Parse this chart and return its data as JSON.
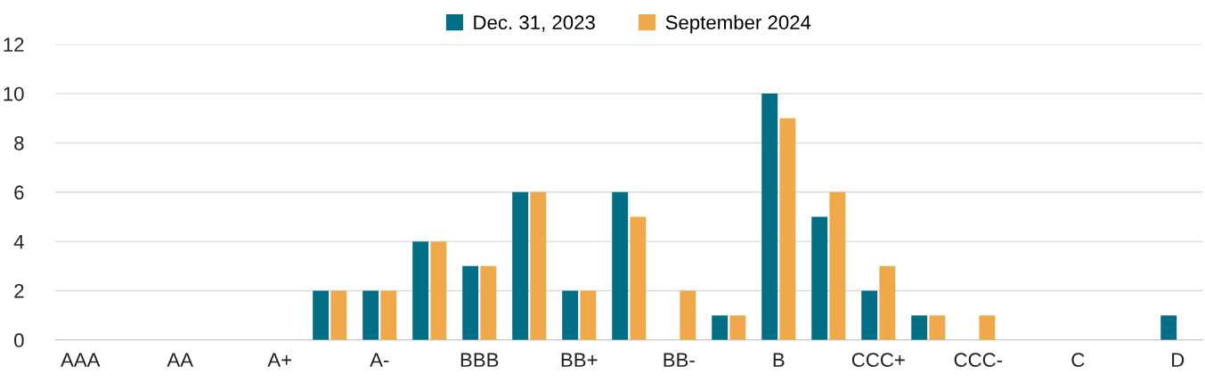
{
  "chart_data": {
    "type": "bar",
    "categories": [
      "AAA",
      null,
      "AA",
      null,
      "A+",
      null,
      "A-",
      null,
      "BBB",
      null,
      "BB+",
      null,
      "BB-",
      null,
      "B",
      null,
      "CCC+",
      null,
      "CCC-",
      null,
      "C",
      null,
      "D"
    ],
    "series": [
      {
        "name": "Dec. 31, 2023",
        "color": "#006f86",
        "values": [
          0,
          0,
          0,
          0,
          0,
          2,
          2,
          4,
          3,
          6,
          2,
          6,
          0,
          1,
          10,
          5,
          2,
          1,
          0,
          0,
          0,
          0,
          1
        ]
      },
      {
        "name": "September 2024",
        "color": "#f0a94a",
        "values": [
          0,
          0,
          0,
          0,
          0,
          2,
          2,
          4,
          3,
          6,
          2,
          5,
          2,
          1,
          9,
          6,
          3,
          1,
          1,
          0,
          0,
          0,
          0
        ]
      }
    ],
    "ylim": [
      0,
      12
    ],
    "yticks": [
      0,
      2,
      4,
      6,
      8,
      10,
      12
    ],
    "grid": "y",
    "legend": "top"
  }
}
